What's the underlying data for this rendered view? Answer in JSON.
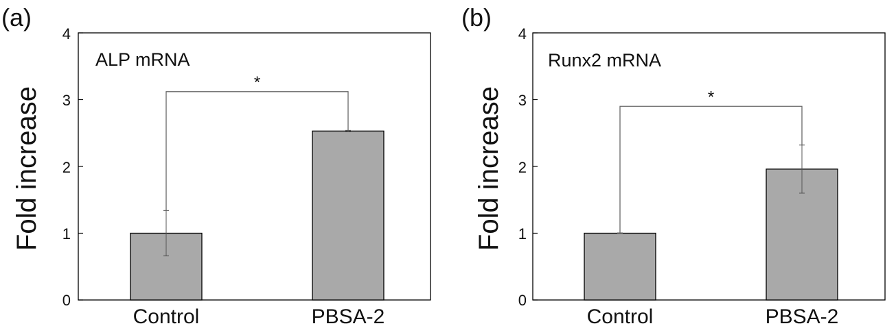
{
  "chart_data": [
    {
      "type": "bar",
      "panel_label": "(a)",
      "title": "ALP mRNA",
      "xlabel": "",
      "ylabel": "Fold increase",
      "categories": [
        "Control",
        "PBSA-2"
      ],
      "values": [
        1.0,
        2.53
      ],
      "errors": [
        0.34,
        0.01
      ],
      "ylim": [
        0,
        4
      ],
      "yticks": [
        "0",
        "1",
        "2",
        "3",
        "4"
      ],
      "significance": {
        "label": "*",
        "between": [
          0,
          1
        ],
        "level": 3.12
      },
      "bar_color": "#a9a9a9",
      "grid": false
    },
    {
      "type": "bar",
      "panel_label": "(b)",
      "title": "Runx2 mRNA",
      "xlabel": "",
      "ylabel": "Fold increase",
      "categories": [
        "Control",
        "PBSA-2"
      ],
      "values": [
        1.0,
        1.96
      ],
      "errors": [
        0.005,
        0.36
      ],
      "ylim": [
        0,
        4
      ],
      "yticks": [
        "0",
        "1",
        "2",
        "3",
        "4"
      ],
      "significance": {
        "label": "*",
        "between": [
          0,
          1
        ],
        "level": 2.9
      },
      "bar_color": "#a9a9a9",
      "grid": false
    }
  ]
}
